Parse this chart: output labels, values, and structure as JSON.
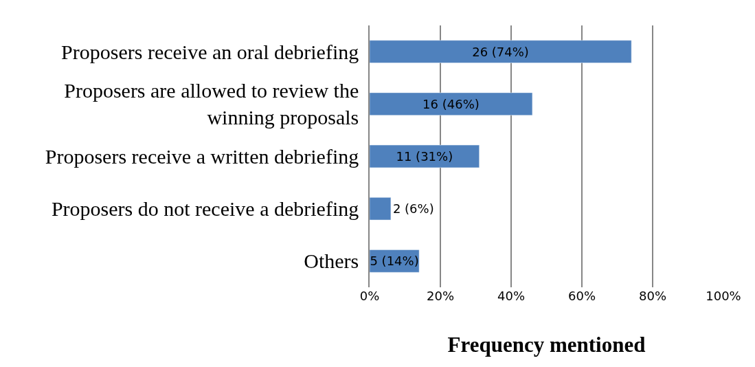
{
  "chart_data": {
    "type": "bar",
    "orientation": "horizontal",
    "xlabel": "Frequency mentioned",
    "categories": [
      "Proposers receive an oral debriefing",
      "Proposers are allowed to review the winning proposals",
      "Proposers receive a written debriefing",
      "Proposers do not receive a debriefing",
      "Others"
    ],
    "values": [
      74,
      46,
      31,
      6,
      14
    ],
    "value_labels": [
      "26 (74%)",
      "16 (46%)",
      "11 (31%)",
      "2 (6%)",
      "5 (14%)"
    ],
    "color": "#4f81bd",
    "xlim": [
      0,
      100
    ],
    "xticks": [
      {
        "value": 0,
        "label": "0%"
      },
      {
        "value": 20,
        "label": "20%"
      },
      {
        "value": 40,
        "label": "40%"
      },
      {
        "value": 60,
        "label": "60%"
      },
      {
        "value": 80,
        "label": "80%"
      },
      {
        "value": 100,
        "label": "100%"
      }
    ],
    "grid": "x"
  }
}
